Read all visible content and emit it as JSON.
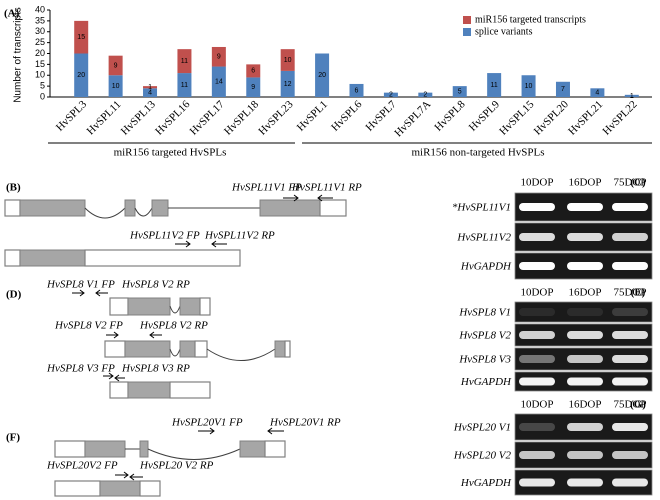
{
  "chart_data": {
    "type": "bar",
    "stacked": true,
    "panel_label": "(A)",
    "ylabel": "Number of transcripts",
    "categories": [
      "HvSPL3",
      "HvSPL11",
      "HvSPL13",
      "HvSPL16",
      "HvSPL17",
      "HvSPL18",
      "HvSPL23",
      "HvSPL1",
      "HvSPL6",
      "HvSPL7",
      "HvSPL7A",
      "HvSPL8",
      "HvSPL9",
      "HvSPL15",
      "HvSPL20",
      "HvSPL21",
      "HvSPL22"
    ],
    "series": [
      {
        "name": "splice variants",
        "color": "#4f81bd",
        "values": [
          20,
          10,
          4,
          11,
          14,
          9,
          12,
          20,
          6,
          2,
          2,
          5,
          11,
          10,
          7,
          4,
          1
        ]
      },
      {
        "name": "miR156 targeted transcripts",
        "color": "#c0504d",
        "values": [
          15,
          9,
          1,
          11,
          9,
          6,
          10,
          null,
          null,
          null,
          null,
          null,
          null,
          null,
          null,
          null,
          null
        ]
      }
    ],
    "ylim": [
      0,
      40
    ],
    "yticks": [
      0,
      5,
      10,
      15,
      20,
      25,
      30,
      35,
      40
    ],
    "grid": false,
    "legend": "top-right",
    "groups": [
      "miR156  targeted HvSPLs",
      "miR156  non-targeted HvSPLs"
    ]
  },
  "diagrams": {
    "B": {
      "label": "(B)",
      "primers": [
        "HvSPL11V1 FP",
        "HvSPL11V1 RP",
        "HvSPL11V2 FP",
        "HvSPL11V2 RP"
      ]
    },
    "D": {
      "label": "(D)",
      "primers": [
        "HvSPL8 V1 FP",
        "HvSPL8 V2 RP",
        "HvSPL8 V2 FP",
        "HvSPL8 V2 RP",
        "HvSPL8 V3 FP",
        "HvSPL8 V3 RP"
      ]
    },
    "F": {
      "label": "(F)",
      "primers": [
        "HvSPL20V1 FP",
        "HvSPL20V1 RP",
        "HvSPL20V2 FP",
        "HvSPL20 V2 RP"
      ]
    }
  },
  "gels": {
    "C": {
      "label": "(C)",
      "lanes": [
        "10DOP",
        "16DOP",
        "75DOP"
      ],
      "rows": [
        "*HvSPL11V1",
        "HvSPL11V2",
        "HvGAPDH"
      ]
    },
    "E": {
      "label": "(E)",
      "lanes": [
        "10DOP",
        "16DOP",
        "75DOP"
      ],
      "rows": [
        "HvSPL8 V1",
        "HvSPL8 V2",
        "HvSPL8 V3",
        "HvGAPDH"
      ]
    },
    "G": {
      "label": "(G)",
      "lanes": [
        "10DOP",
        "16DOP",
        "75DOP"
      ],
      "rows": [
        "HvSPL20 V1",
        "HvSPL20 V2",
        "HvGAPDH"
      ]
    }
  }
}
